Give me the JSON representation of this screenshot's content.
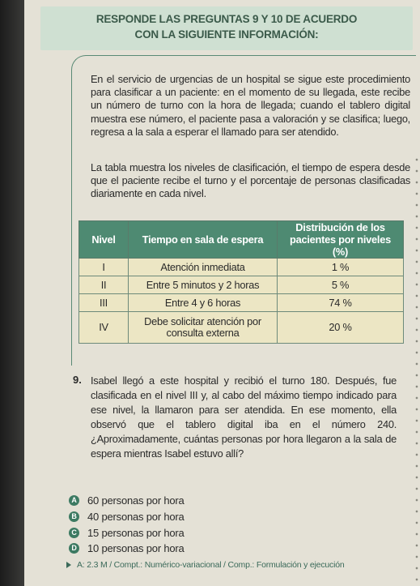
{
  "banner": {
    "line1": "RESPONDE LAS PREGUNTAS 9 Y 10 DE ACUERDO",
    "line2": "CON LA SIGUIENTE INFORMACIÓN:"
  },
  "paragraph1": "En el servicio de urgencias de un hospital se sigue este procedimiento para clasificar a un paciente: en el momento de su llegada, este recibe un número de turno con la hora de llegada; cuando el tablero digital muestra ese número, el paciente pasa a valoración y se clasifica; luego, regresa a la sala a esperar el llamado para ser atendido.",
  "paragraph2": "La tabla muestra los niveles de clasificación, el tiempo de espera desde que el paciente recibe el turno y el porcentaje de personas clasificadas diariamente en cada nivel.",
  "table": {
    "headers": {
      "level": "Nivel",
      "time": "Tiempo en sala de espera",
      "dist": "Distribución de los pacientes por niveles (%)"
    },
    "rows": [
      {
        "level": "I",
        "time": "Atención inmediata",
        "dist": "1 %"
      },
      {
        "level": "II",
        "time": "Entre 5 minutos y 2 horas",
        "dist": "5 %"
      },
      {
        "level": "III",
        "time": "Entre 4 y 6 horas",
        "dist": "74 %"
      },
      {
        "level": "IV",
        "time": "Debe solicitar atención por consulta externa",
        "dist": "20 %"
      }
    ]
  },
  "question": {
    "number": "9.",
    "text": "Isabel llegó a este hospital y recibió el turno 180. Después, fue clasificada en el nivel III y, al cabo del máximo tiempo indicado para ese nivel, la llamaron para ser atendida. En ese momento, ella observó que el tablero digital iba en el número 240. ¿Aproximadamente, cuántas personas por hora llegaron a la sala de espera mientras Isabel estuvo allí?"
  },
  "options": [
    {
      "letter": "A",
      "text": "60 personas por hora"
    },
    {
      "letter": "B",
      "text": "40 personas por hora"
    },
    {
      "letter": "C",
      "text": "15 personas por hora"
    },
    {
      "letter": "D",
      "text": "10 personas por hora"
    }
  ],
  "footnote": "A: 2.3 M / Compt.: Numérico-variacional / Comp.: Formulación y ejecución",
  "colors": {
    "accent": "#4e8a72",
    "banner": "#cfe0d2",
    "table_cell": "#ece6c4"
  }
}
